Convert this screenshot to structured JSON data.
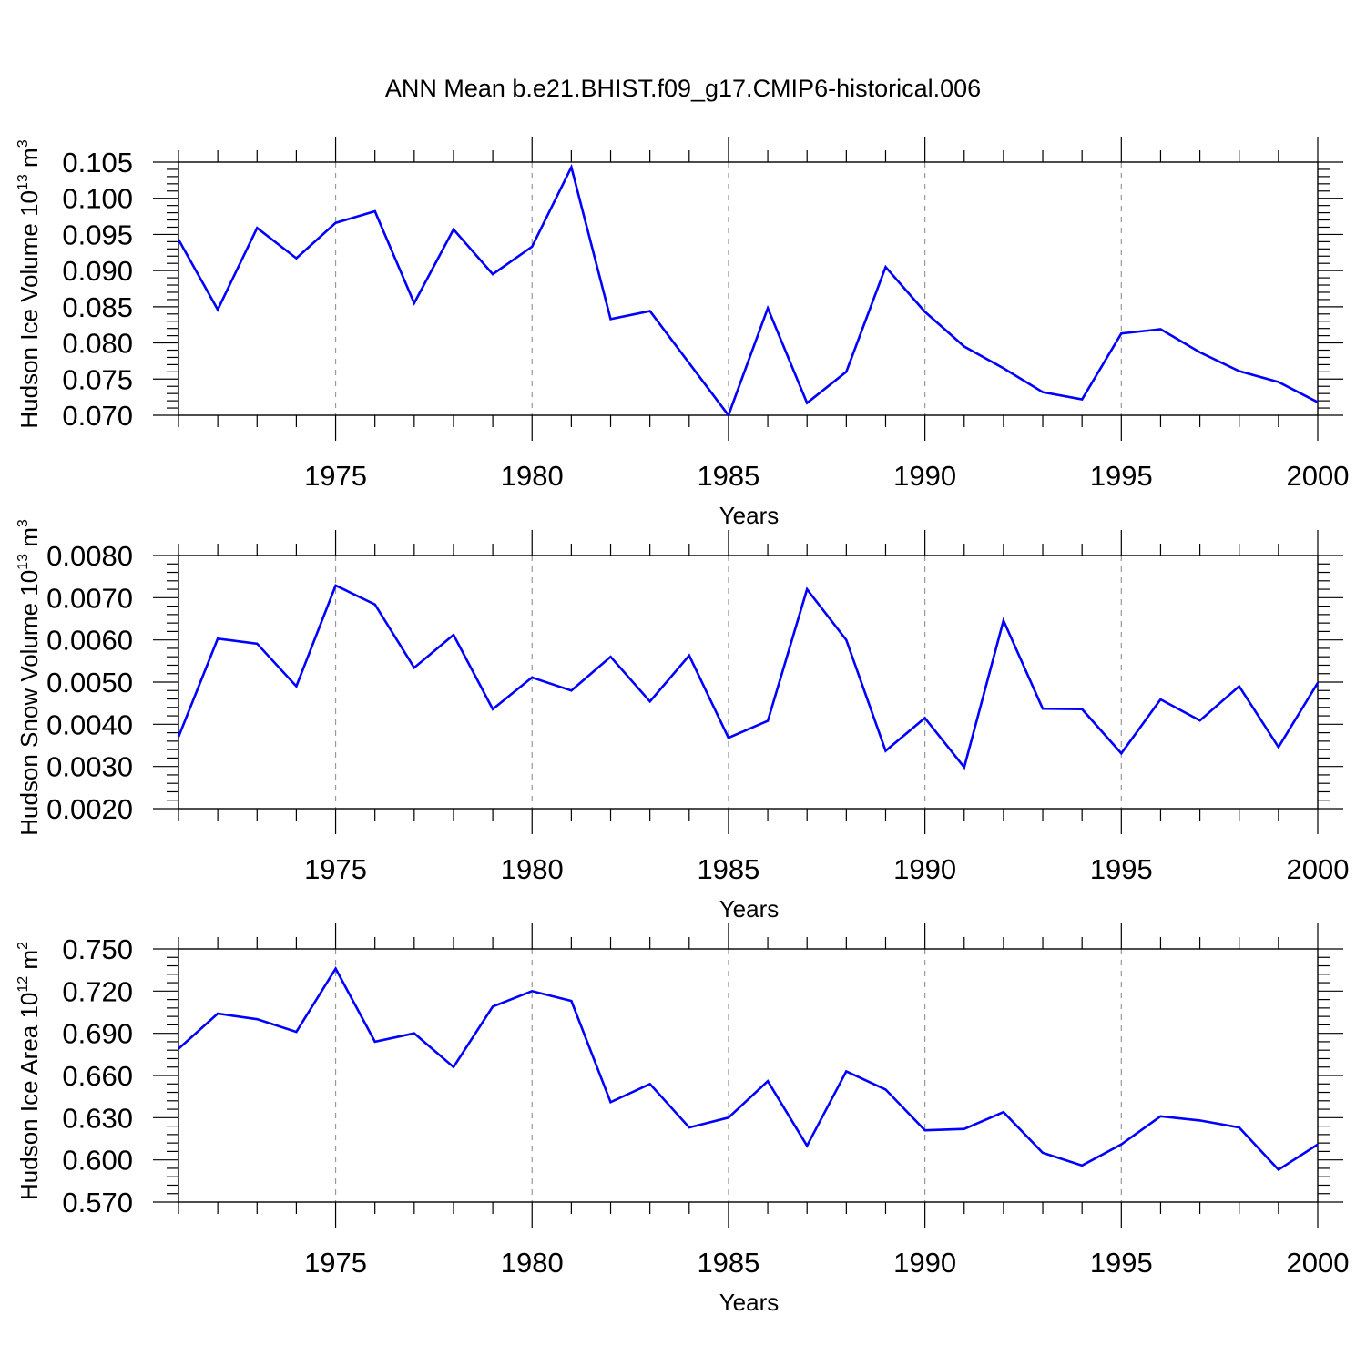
{
  "title": "ANN Mean b.e21.BHIST.f09_g17.CMIP6-historical.006",
  "colors": {
    "line": "#0000ff",
    "grid": "#999999",
    "axis": "#000000"
  },
  "chart_data": [
    {
      "type": "line",
      "ylabel_main": "Hudson Ice Volume 10",
      "ylabel_exp": "13",
      "ylabel_unit": " m",
      "ylabel_unit_exp": "3",
      "xlabel": "Years",
      "xlim": [
        1971,
        2000
      ],
      "ylim": [
        0.07,
        0.105
      ],
      "y_tick_labels": [
        "0.070",
        "0.075",
        "0.080",
        "0.085",
        "0.090",
        "0.095",
        "0.100",
        "0.105"
      ],
      "y_minor_step": 0.001,
      "x_ticks": [
        1975,
        1980,
        1985,
        1990,
        1995,
        2000
      ],
      "x_tick_labels": [
        "1975",
        "1980",
        "1985",
        "1990",
        "1995",
        "2000"
      ],
      "grid": "vertical-dashed",
      "x": [
        1971,
        1972,
        1973,
        1974,
        1975,
        1976,
        1977,
        1978,
        1979,
        1980,
        1981,
        1982,
        1983,
        1984,
        1985,
        1986,
        1987,
        1988,
        1989,
        1990,
        1991,
        1992,
        1993,
        1994,
        1995,
        1996,
        1997,
        1998,
        1999,
        2000
      ],
      "values": [
        0.0943,
        0.0846,
        0.0959,
        0.0917,
        0.0966,
        0.0982,
        0.0855,
        0.0957,
        0.0895,
        0.0933,
        0.1043,
        0.0833,
        0.0844,
        0.0772,
        0.07,
        0.0848,
        0.0717,
        0.076,
        0.0905,
        0.0843,
        0.0795,
        0.0765,
        0.0732,
        0.0722,
        0.0813,
        0.0819,
        0.0787,
        0.0761,
        0.0746,
        0.0718
      ]
    },
    {
      "type": "line",
      "ylabel_main": "Hudson Snow Volume 10",
      "ylabel_exp": "13",
      "ylabel_unit": " m",
      "ylabel_unit_exp": "3",
      "xlabel": "Years",
      "xlim": [
        1971,
        2000
      ],
      "ylim": [
        0.002,
        0.008
      ],
      "y_tick_labels": [
        "0.0020",
        "0.0030",
        "0.0040",
        "0.0050",
        "0.0060",
        "0.0070",
        "0.0080"
      ],
      "y_minor_step": 0.0002,
      "x_ticks": [
        1975,
        1980,
        1985,
        1990,
        1995,
        2000
      ],
      "x_tick_labels": [
        "1975",
        "1980",
        "1985",
        "1990",
        "1995",
        "2000"
      ],
      "grid": "vertical-dashed",
      "x": [
        1971,
        1972,
        1973,
        1974,
        1975,
        1976,
        1977,
        1978,
        1979,
        1980,
        1981,
        1982,
        1983,
        1984,
        1985,
        1986,
        1987,
        1988,
        1989,
        1990,
        1991,
        1992,
        1993,
        1994,
        1995,
        1996,
        1997,
        1998,
        1999,
        2000
      ],
      "values": [
        0.0037,
        0.00603,
        0.00591,
        0.0049,
        0.00729,
        0.00684,
        0.00534,
        0.00612,
        0.00436,
        0.00511,
        0.0048,
        0.0056,
        0.00454,
        0.00563,
        0.00368,
        0.00408,
        0.0072,
        0.006,
        0.00337,
        0.00415,
        0.00298,
        0.00646,
        0.00437,
        0.00436,
        0.00331,
        0.00459,
        0.00409,
        0.0049,
        0.00346,
        0.00498
      ]
    },
    {
      "type": "line",
      "ylabel_main": "Hudson Ice Area 10",
      "ylabel_exp": "12",
      "ylabel_unit": " m",
      "ylabel_unit_exp": "2",
      "xlabel": "Years",
      "xlim": [
        1971,
        2000
      ],
      "ylim": [
        0.57,
        0.75
      ],
      "y_tick_labels": [
        "0.570",
        "0.600",
        "0.630",
        "0.660",
        "0.690",
        "0.720",
        "0.750"
      ],
      "y_minor_step": 0.006,
      "x_ticks": [
        1975,
        1980,
        1985,
        1990,
        1995,
        2000
      ],
      "x_tick_labels": [
        "1975",
        "1980",
        "1985",
        "1990",
        "1995",
        "2000"
      ],
      "grid": "vertical-dashed",
      "x": [
        1971,
        1972,
        1973,
        1974,
        1975,
        1976,
        1977,
        1978,
        1979,
        1980,
        1981,
        1982,
        1983,
        1984,
        1985,
        1986,
        1987,
        1988,
        1989,
        1990,
        1991,
        1992,
        1993,
        1994,
        1995,
        1996,
        1997,
        1998,
        1999,
        2000
      ],
      "values": [
        0.679,
        0.704,
        0.7,
        0.691,
        0.736,
        0.684,
        0.69,
        0.666,
        0.709,
        0.72,
        0.713,
        0.641,
        0.654,
        0.623,
        0.63,
        0.656,
        0.61,
        0.663,
        0.65,
        0.621,
        0.622,
        0.634,
        0.605,
        0.596,
        0.611,
        0.631,
        0.628,
        0.623,
        0.593,
        0.611
      ]
    }
  ]
}
